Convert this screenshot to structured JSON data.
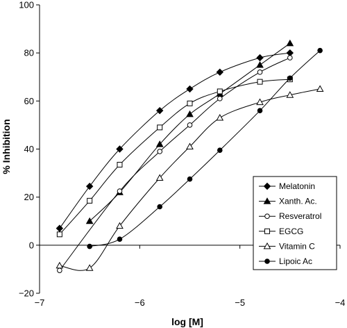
{
  "chart_data": {
    "type": "line",
    "title": "",
    "xlabel": "log [M]",
    "ylabel": "% Inhibition",
    "xlim": [
      -7,
      -4
    ],
    "ylim": [
      -20,
      100
    ],
    "xticks": [
      -7,
      -6,
      -5,
      -4
    ],
    "xtick_labels": [
      "−7",
      "−6",
      "−5",
      "−4"
    ],
    "yticks": [
      -20,
      0,
      20,
      40,
      60,
      80,
      100
    ],
    "ytick_labels": [
      "−20",
      "0",
      "20",
      "40",
      "60",
      "80",
      "100"
    ],
    "grid": false,
    "legend_position": "bottom-right",
    "series": [
      {
        "name": "Melatonin",
        "marker": "diamond-filled",
        "x": [
          -6.8,
          -6.5,
          -6.2,
          -5.8,
          -5.5,
          -5.2,
          -4.8,
          -4.5
        ],
        "y": [
          7,
          24.5,
          40,
          56,
          65,
          72,
          78,
          80
        ]
      },
      {
        "name": "Xanth. Ac.",
        "marker": "triangle-filled",
        "x": [
          -6.5,
          -6.2,
          -5.8,
          -5.5,
          -5.2,
          -4.8,
          -4.5
        ],
        "y": [
          10,
          22,
          42,
          54.5,
          63,
          75,
          84
        ]
      },
      {
        "name": "Resveratrol",
        "marker": "circle-open",
        "x": [
          -6.8,
          -6.2,
          -5.8,
          -5.5,
          -5.2,
          -4.8,
          -4.5
        ],
        "y": [
          -10.5,
          22.5,
          39,
          50,
          61,
          72,
          78
        ]
      },
      {
        "name": "EGCG",
        "marker": "square-open",
        "x": [
          -6.8,
          -6.5,
          -6.2,
          -5.8,
          -5.5,
          -5.2,
          -4.8,
          -4.5
        ],
        "y": [
          4.5,
          18.5,
          33.5,
          49,
          59,
          64,
          68,
          69
        ]
      },
      {
        "name": "Vitamin  C",
        "marker": "triangle-open",
        "x": [
          -6.8,
          -6.5,
          -6.2,
          -5.8,
          -5.5,
          -5.2,
          -4.8,
          -4.5,
          -4.2
        ],
        "y": [
          -8.5,
          -9.5,
          8,
          28,
          41,
          53,
          59.5,
          62.5,
          65
        ]
      },
      {
        "name": "Lipoic Ac",
        "marker": "circle-filled",
        "x": [
          -6.5,
          -6.2,
          -5.8,
          -5.5,
          -5.2,
          -4.8,
          -4.5,
          -4.2
        ],
        "y": [
          -0.5,
          2.5,
          16,
          27.5,
          39.5,
          56,
          69.5,
          81
        ]
      }
    ]
  }
}
